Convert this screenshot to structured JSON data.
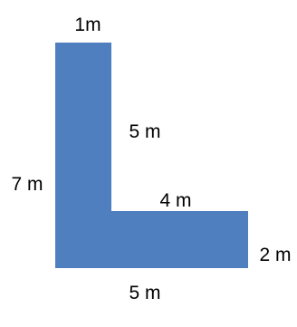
{
  "shape": {
    "fill_color": "#4f7fbf",
    "labels": {
      "top_width": "1m",
      "inner_vertical": "5 m",
      "left_height": "7 m",
      "inner_horizontal": "4 m",
      "right_height": "2 m",
      "bottom_width": "5 m"
    }
  }
}
